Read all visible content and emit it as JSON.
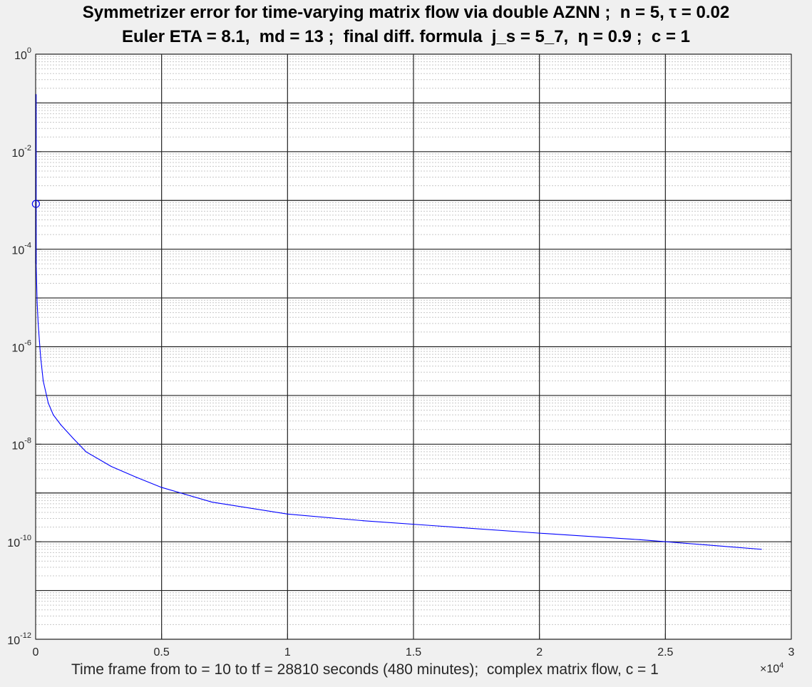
{
  "title_line1": "Symmetrizer error for time-varying matrix flow via double AZNN ;  n = 5, τ = 0.02",
  "title_line2": "Euler ETA = 8.1,  md = 13 ;  final diff. formula  j_s = 5_7,  η = 0.9 ;  c = 1",
  "xlabel": "Time frame from to = 10 to tf = 28810 seconds (480 minutes);  complex matrix flow, c = 1",
  "x_exponent": {
    "base": "×10",
    "power": "4"
  },
  "colors": {
    "line": "#0000ff",
    "axes": "#262626",
    "background": "#f0f0f0",
    "plot_bg": "#ffffff"
  },
  "chart_data": {
    "type": "line",
    "title": "Symmetrizer error for time-varying matrix flow via double AZNN ;  n = 5, τ = 0.02 / Euler ETA = 8.1,  md = 13 ;  final diff. formula  j_s = 5_7,  η = 0.9 ;  c = 1",
    "xlabel": "Time frame from to = 10 to tf = 28810 seconds (480 minutes);  complex matrix flow, c = 1",
    "ylabel": "",
    "xlim": [
      0,
      30000
    ],
    "ylim": [
      1e-12,
      1
    ],
    "yscale": "log",
    "grid": true,
    "minor_grid": true,
    "x_ticks": [
      0,
      5000,
      10000,
      15000,
      20000,
      25000,
      30000
    ],
    "x_tick_labels": [
      "0",
      "0.5",
      "1",
      "1.5",
      "2",
      "2.5",
      "3"
    ],
    "y_tick_exponents": [
      0,
      -2,
      -4,
      -6,
      -8,
      -10,
      -12
    ],
    "series": [
      {
        "color": "#0000ff",
        "x": [
          10,
          10,
          20,
          60,
          100,
          150,
          200,
          300,
          500,
          700,
          1000,
          1500,
          2000,
          3000,
          4000,
          5000,
          7000,
          10000,
          13000,
          16000,
          20000,
          24000,
          28810
        ],
        "y": [
          0.15,
          0.001,
          5e-05,
          8e-06,
          3e-06,
          1.3e-06,
          6e-07,
          2e-07,
          7e-08,
          4e-08,
          2.5e-08,
          1.3e-08,
          7e-09,
          3.5e-09,
          2.1e-09,
          1.3e-09,
          6.5e-10,
          3.7e-10,
          2.7e-10,
          2.1e-10,
          1.5e-10,
          1.1e-10,
          7e-11
        ]
      }
    ],
    "markers": [
      {
        "x": 10,
        "y": 0.00085,
        "shape": "circle"
      }
    ]
  }
}
